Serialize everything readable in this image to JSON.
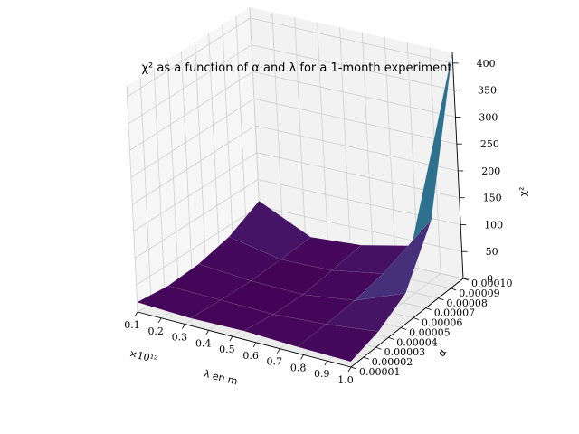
{
  "chart_data": {
    "type": "surface",
    "title": "χ² as a function of α and λ for a 1-month experiment",
    "xlabel": "λ en m",
    "ylabel": "α",
    "zlabel": "χ²",
    "x_offset_text": "×10¹²",
    "x_ticks": [
      "0.1",
      "0.2",
      "0.3",
      "0.4",
      "0.5",
      "0.6",
      "0.7",
      "0.8",
      "0.9",
      "1.0"
    ],
    "y_ticks": [
      "0.00001",
      "0.00002",
      "0.00003",
      "0.00004",
      "0.00005",
      "0.00006",
      "0.00007",
      "0.00008",
      "0.00009",
      "0.00010"
    ],
    "z_ticks": [
      "0",
      "50",
      "100",
      "150",
      "200",
      "250",
      "300",
      "350",
      "400"
    ],
    "xlim": [
      0.1,
      1.0
    ],
    "ylim": [
      1e-05,
      0.0001
    ],
    "zlim": [
      0,
      420
    ],
    "colormap": "viridis",
    "grid": true,
    "x": [
      0.1,
      0.325,
      0.55,
      0.775,
      1.0
    ],
    "y": [
      1e-05,
      3.25e-05,
      5.5e-05,
      7.75e-05,
      0.0001
    ],
    "z": [
      [
        18,
        14,
        16,
        12,
        10
      ],
      [
        12,
        10,
        8,
        14,
        25
      ],
      [
        16,
        8,
        6,
        18,
        55
      ],
      [
        30,
        10,
        12,
        28,
        150
      ],
      [
        60,
        14,
        20,
        40,
        420
      ]
    ],
    "colors": {
      "pane": "#f2f2f2",
      "grid": "#cfcfcf"
    }
  }
}
